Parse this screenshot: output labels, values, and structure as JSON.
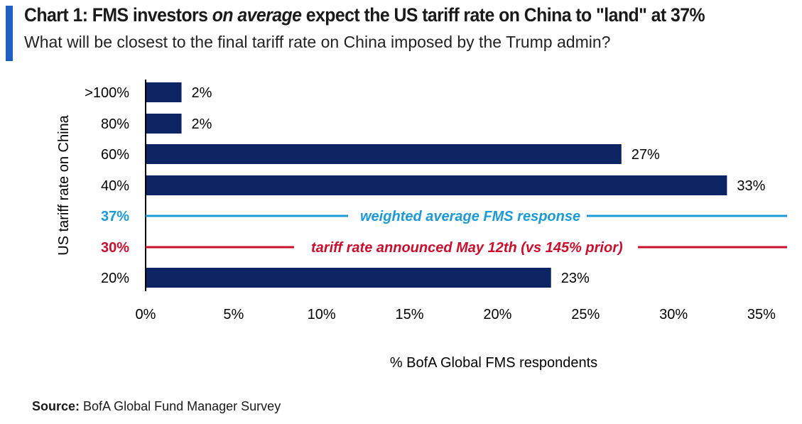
{
  "header": {
    "title_prefix": "Chart 1: FMS investors ",
    "title_emphasis": "on average",
    "title_suffix": " expect the US tariff rate on China to \"land\" at 37%",
    "subtitle": "What will be closest to the final tariff rate on China imposed by the Trump admin?"
  },
  "chart_data": {
    "type": "bar",
    "orientation": "horizontal",
    "categories": [
      ">100%",
      "80%",
      "60%",
      "40%",
      "20%"
    ],
    "values": [
      2,
      2,
      27,
      33,
      23
    ],
    "value_labels": [
      "2%",
      "2%",
      "27%",
      "33%",
      "23%"
    ],
    "bar_color": "#0c2461",
    "xlabel": "% BofA Global FMS respondents",
    "ylabel": "US tariff rate on China",
    "xlim": [
      0,
      36.5
    ],
    "xticks": [
      0,
      5,
      10,
      15,
      20,
      25,
      30,
      35
    ],
    "xtick_labels": [
      "0%",
      "5%",
      "10%",
      "15%",
      "20%",
      "25%",
      "30%",
      "35%"
    ],
    "grid": false,
    "reference_lines": [
      {
        "category_label": "37%",
        "text": "weighted average FMS response",
        "color": "#1c9ad6"
      },
      {
        "category_label": "30%",
        "text": "tariff rate announced May 12th (vs 145% prior)",
        "color": "#c8102e"
      }
    ]
  },
  "footer": {
    "source_label": "Source:",
    "source_text": " BofA Global Fund Manager Survey"
  },
  "colors": {
    "accent": "#1f5fbf",
    "bar": "#0c2461",
    "average_line": "#1c9ad6",
    "announced_line": "#c8102e"
  }
}
